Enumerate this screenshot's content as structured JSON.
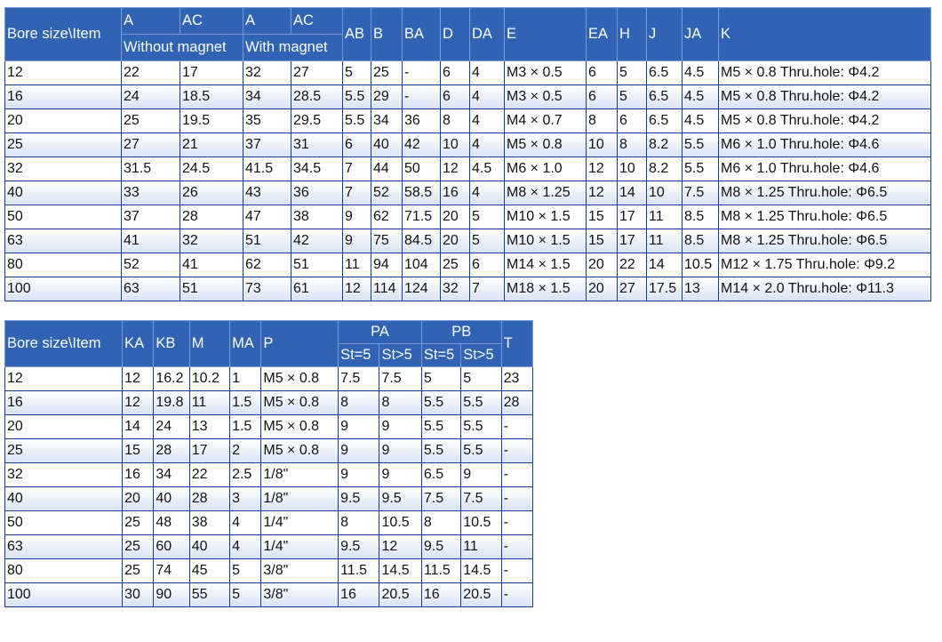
{
  "table1": {
    "head_row1": [
      "Bore size\\Item",
      "A",
      "AC",
      "A",
      "AC",
      "AB",
      "B",
      "BA",
      "D",
      "DA",
      "E",
      "EA",
      "H",
      "J",
      "JA",
      "K"
    ],
    "head_sub": [
      "Without magnet",
      "With magnet"
    ],
    "rows": [
      [
        "12",
        "22",
        "17",
        "32",
        "27",
        "5",
        "25",
        "-",
        "6",
        "4",
        "M3 × 0.5",
        "6",
        "5",
        "6.5",
        "4.5",
        "M5 × 0.8 Thru.hole: Φ4.2"
      ],
      [
        "16",
        "24",
        "18.5",
        "34",
        "28.5",
        "5.5",
        "29",
        "-",
        "6",
        "4",
        "M3 × 0.5",
        "6",
        "5",
        "6.5",
        "4.5",
        "M5 × 0.8 Thru.hole: Φ4.2"
      ],
      [
        "20",
        "25",
        "19.5",
        "35",
        "29.5",
        "5.5",
        "34",
        "36",
        "8",
        "4",
        "M4 × 0.7",
        "8",
        "6",
        "6.5",
        "4.5",
        "M5 × 0.8 Thru.hole: Φ4.2"
      ],
      [
        "25",
        "27",
        "21",
        "37",
        "31",
        "6",
        "40",
        "42",
        "10",
        "4",
        "M5 × 0.8",
        "10",
        "8",
        "8.2",
        "5.5",
        "M6 × 1.0 Thru.hole: Φ4.6"
      ],
      [
        "32",
        "31.5",
        "24.5",
        "41.5",
        "34.5",
        "7",
        "44",
        "50",
        "12",
        "4.5",
        "M6 × 1.0",
        "12",
        "10",
        "8.2",
        "5.5",
        "M6 × 1.0 Thru.hole: Φ4.6"
      ],
      [
        "40",
        "33",
        "26",
        "43",
        "36",
        "7",
        "52",
        "58.5",
        "16",
        "4",
        "M8 × 1.25",
        "12",
        "14",
        "10",
        "7.5",
        "M8 × 1.25 Thru.hole: Φ6.5"
      ],
      [
        "50",
        "37",
        "28",
        "47",
        "38",
        "9",
        "62",
        "71.5",
        "20",
        "5",
        "M10 × 1.5",
        "15",
        "17",
        "11",
        "8.5",
        "M8 × 1.25 Thru.hole: Φ6.5"
      ],
      [
        "63",
        "41",
        "32",
        "51",
        "42",
        "9",
        "75",
        "84.5",
        "20",
        "5",
        "M10 × 1.5",
        "15",
        "17",
        "11",
        "8.5",
        "M8 × 1.25 Thru.hole: Φ6.5"
      ],
      [
        "80",
        "52",
        "41",
        "62",
        "51",
        "11",
        "94",
        "104",
        "25",
        "6",
        "M14 × 1.5",
        "20",
        "22",
        "14",
        "10.5",
        "M12 × 1.75 Thru.hole: Φ9.2"
      ],
      [
        "100",
        "63",
        "51",
        "73",
        "61",
        "12",
        "114",
        "124",
        "32",
        "7",
        "M18 × 1.5",
        "20",
        "27",
        "17.5",
        "13",
        "M14 × 2.0 Thru.hole: Φ11.3"
      ]
    ]
  },
  "table2": {
    "head_row1": [
      "Bore size\\Item",
      "KA",
      "KB",
      "M",
      "MA",
      "P",
      "PA",
      "PB",
      "T"
    ],
    "head_sub": [
      "St=5",
      "St>5",
      "St=5",
      "St>5"
    ],
    "rows": [
      [
        "12",
        "12",
        "16.2",
        "10.2",
        "1",
        "M5 × 0.8",
        "7.5",
        "7.5",
        "5",
        "5",
        "23"
      ],
      [
        "16",
        "12",
        "19.8",
        "11",
        "1.5",
        "M5 × 0.8",
        "8",
        "8",
        "5.5",
        "5.5",
        "28"
      ],
      [
        "20",
        "14",
        "24",
        "13",
        "1.5",
        "M5 × 0.8",
        "9",
        "9",
        "5.5",
        "5.5",
        "-"
      ],
      [
        "25",
        "15",
        "28",
        "17",
        "2",
        "M5 × 0.8",
        "9",
        "9",
        "5.5",
        "5.5",
        "-"
      ],
      [
        "32",
        "16",
        "34",
        "22",
        "2.5",
        "1/8\"",
        "9",
        "9",
        "6.5",
        "9",
        "-"
      ],
      [
        "40",
        "20",
        "40",
        "28",
        "3",
        "1/8\"",
        "9.5",
        "9.5",
        "7.5",
        "7.5",
        "-"
      ],
      [
        "50",
        "25",
        "48",
        "38",
        "4",
        "1/4\"",
        "8",
        "10.5",
        "8",
        "10.5",
        "-"
      ],
      [
        "63",
        "25",
        "60",
        "40",
        "4",
        "1/4\"",
        "9.5",
        "12",
        "9.5",
        "11",
        "-"
      ],
      [
        "80",
        "25",
        "74",
        "45",
        "5",
        "3/8\"",
        "11.5",
        "14.5",
        "11.5",
        "14.5",
        "-"
      ],
      [
        "100",
        "30",
        "90",
        "55",
        "5",
        "3/8\"",
        "16",
        "20.5",
        "16",
        "20.5",
        "-"
      ]
    ]
  },
  "colors": {
    "header_bg": "#3163b5",
    "border": "#1c3c8f",
    "alt_row": "#d6e2f3"
  }
}
